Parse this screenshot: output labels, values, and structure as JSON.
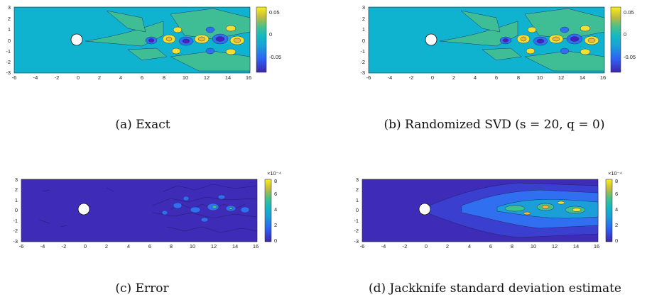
{
  "panels": [
    {
      "caption": "(a) Exact",
      "xticks": [
        "-6",
        "-4",
        "-2",
        "0",
        "2",
        "4",
        "6",
        "8",
        "10",
        "12",
        "14",
        "16"
      ],
      "yticks": [
        "3",
        "2",
        "1",
        "0",
        "-1",
        "-2",
        "-3"
      ],
      "cticks": [
        "0.05",
        "0",
        "-0.05"
      ],
      "cexp": ""
    },
    {
      "caption": "(b) Randomized SVD (s = 20, q = 0)",
      "xticks": [
        "-6",
        "-4",
        "-2",
        "0",
        "2",
        "4",
        "6",
        "8",
        "10",
        "12",
        "14",
        "16"
      ],
      "yticks": [
        "3",
        "2",
        "1",
        "0",
        "-1",
        "-2",
        "-3"
      ],
      "cticks": [
        "0.05",
        "0",
        "-0.05"
      ],
      "cexp": ""
    },
    {
      "caption": "(c) Error",
      "xticks": [
        "-6",
        "-4",
        "-2",
        "0",
        "2",
        "4",
        "6",
        "8",
        "10",
        "12",
        "14",
        "16"
      ],
      "yticks": [
        "3",
        "2",
        "1",
        "0",
        "-1",
        "-2",
        "-3"
      ],
      "cticks": [
        "8",
        "6",
        "4",
        "2",
        "0"
      ],
      "cexp": "×10⁻⁴"
    },
    {
      "caption": "(d) Jackknife standard deviation estimate",
      "xticks": [
        "-6",
        "-4",
        "-2",
        "0",
        "2",
        "4",
        "6",
        "8",
        "10",
        "12",
        "14",
        "16"
      ],
      "yticks": [
        "3",
        "2",
        "1",
        "0",
        "-1",
        "-2",
        "-3"
      ],
      "cticks": [
        "8",
        "6",
        "4",
        "2",
        "0"
      ],
      "cexp": "×10⁻⁴"
    }
  ],
  "chart_data": [
    {
      "type": "heatmap",
      "xlim": [
        -6,
        16
      ],
      "ylim": [
        -3,
        3
      ],
      "clim": [
        -0.07,
        0.07
      ],
      "colormap": "parula",
      "cylinder": {
        "x": 0,
        "y": 0,
        "r": 0.5
      }
    },
    {
      "type": "heatmap",
      "xlim": [
        -6,
        16
      ],
      "ylim": [
        -3,
        3
      ],
      "clim": [
        -0.07,
        0.07
      ],
      "colormap": "parula",
      "cylinder": {
        "x": 0,
        "y": 0,
        "r": 0.5
      }
    },
    {
      "type": "heatmap",
      "xlim": [
        -6,
        16
      ],
      "ylim": [
        -3,
        3
      ],
      "clim": [
        0,
        0.0008
      ],
      "colormap": "parula",
      "cylinder": {
        "x": 0,
        "y": 0,
        "r": 0.5
      }
    },
    {
      "type": "heatmap",
      "xlim": [
        -6,
        16
      ],
      "ylim": [
        -3,
        3
      ],
      "clim": [
        0,
        0.0008
      ],
      "colormap": "parula",
      "cylinder": {
        "x": 0,
        "y": 0,
        "r": 0.5
      }
    }
  ],
  "colors": {
    "field_bg": "#0fb3d0",
    "error_bg": "#3e2bb8",
    "yellow": "#f5e032",
    "orange": "#f0b83a",
    "green": "#44bf8e",
    "blue": "#2f6ff0",
    "purple": "#4a1fbf",
    "teal": "#1a9fd8"
  }
}
